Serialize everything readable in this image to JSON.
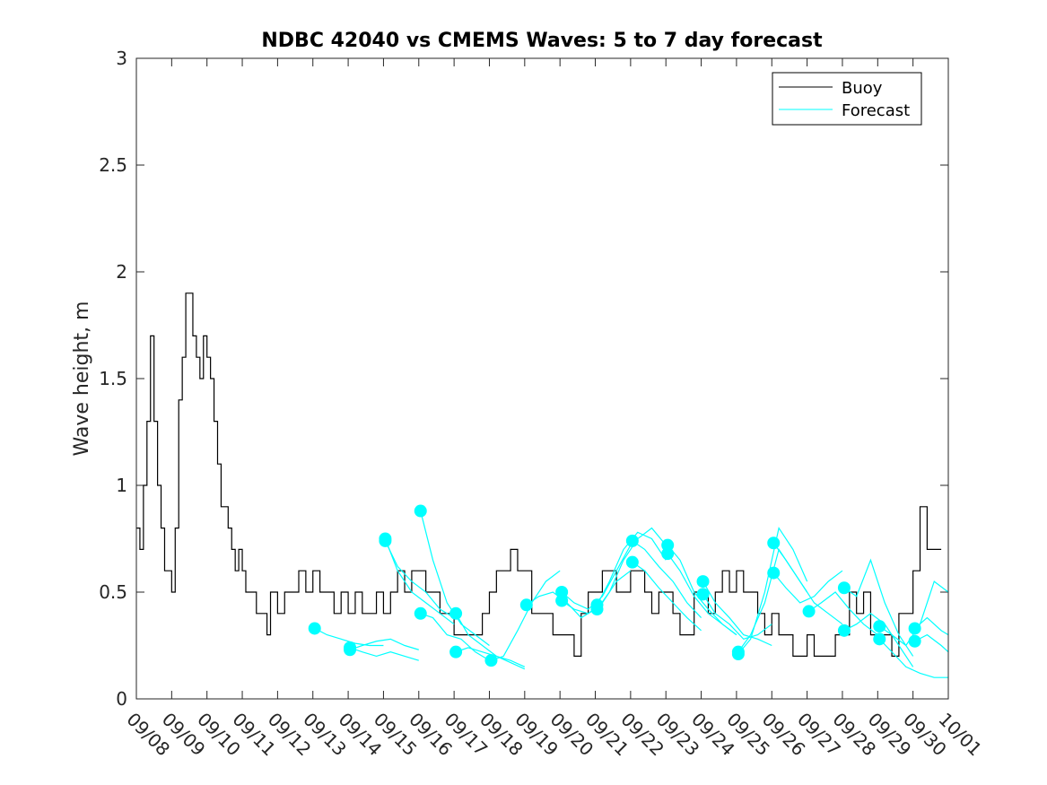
{
  "chart_data": {
    "type": "line",
    "title": "NDBC 42040 vs CMEMS Waves: 5 to 7 day forecast",
    "xlabel": "",
    "ylabel": "Wave height, m",
    "xlim": [
      0,
      23
    ],
    "ylim": [
      0,
      3
    ],
    "yticks": [
      "0",
      "0.5",
      "1",
      "1.5",
      "2",
      "2.5",
      "3"
    ],
    "ytick_values": [
      0,
      0.5,
      1,
      1.5,
      2,
      2.5,
      3
    ],
    "xticks": [
      "09/08",
      "09/09",
      "09/10",
      "09/11",
      "09/12",
      "09/13",
      "09/14",
      "09/15",
      "09/16",
      "09/17",
      "09/18",
      "09/19",
      "09/20",
      "09/21",
      "09/22",
      "09/23",
      "09/24",
      "09/25",
      "09/26",
      "09/27",
      "09/28",
      "09/29",
      "09/30",
      "10/01"
    ],
    "grid": false,
    "legend_position": "top-right",
    "legend": [
      "Buoy",
      "Forecast"
    ],
    "colors": {
      "buoy": "#000000",
      "forecast": "#00ffff"
    },
    "buoy": {
      "name": "Buoy",
      "x": [
        0,
        0.1,
        0.2,
        0.3,
        0.4,
        0.5,
        0.6,
        0.7,
        0.8,
        0.9,
        1.0,
        1.1,
        1.2,
        1.3,
        1.4,
        1.5,
        1.6,
        1.7,
        1.8,
        1.9,
        2.0,
        2.1,
        2.2,
        2.3,
        2.4,
        2.5,
        2.6,
        2.7,
        2.8,
        2.9,
        3.0,
        3.1,
        3.2,
        3.3,
        3.4,
        3.5,
        3.6,
        3.7,
        3.8,
        3.9,
        4.0,
        4.2,
        4.4,
        4.6,
        4.8,
        5.0,
        5.2,
        5.4,
        5.6,
        5.8,
        6.0,
        6.2,
        6.4,
        6.6,
        6.8,
        7.0,
        7.2,
        7.4,
        7.6,
        7.8,
        8.0,
        8.2,
        8.4,
        8.6,
        8.8,
        9.0,
        9.2,
        9.4,
        9.6,
        9.8,
        10.0,
        10.2,
        10.4,
        10.6,
        10.8,
        11.0,
        11.2,
        11.4,
        11.6,
        11.8,
        12.0,
        12.2,
        12.4,
        12.6,
        12.8,
        13.0,
        13.2,
        13.4,
        13.6,
        13.8,
        14.0,
        14.2,
        14.4,
        14.6,
        14.8,
        15.0,
        15.2,
        15.4,
        15.6,
        15.8,
        16.0,
        16.2,
        16.4,
        16.6,
        16.8,
        17.0,
        17.2,
        17.4,
        17.6,
        17.8,
        18.0,
        18.2,
        18.4,
        18.6,
        18.8,
        19.0,
        19.2,
        19.4,
        19.6,
        19.8,
        20.0,
        20.2,
        20.4,
        20.6,
        20.8,
        21.0,
        21.2,
        21.4,
        21.6,
        21.8,
        22.0,
        22.2,
        22.4,
        22.6,
        22.8
      ],
      "values": [
        0.8,
        0.7,
        1.0,
        1.3,
        1.7,
        1.3,
        1.0,
        0.8,
        0.6,
        0.6,
        0.5,
        0.8,
        1.4,
        1.6,
        1.9,
        1.9,
        1.7,
        1.6,
        1.5,
        1.7,
        1.6,
        1.5,
        1.3,
        1.1,
        0.9,
        0.9,
        0.8,
        0.7,
        0.6,
        0.7,
        0.6,
        0.5,
        0.5,
        0.5,
        0.4,
        0.4,
        0.4,
        0.3,
        0.5,
        0.5,
        0.4,
        0.5,
        0.5,
        0.6,
        0.5,
        0.6,
        0.5,
        0.5,
        0.4,
        0.5,
        0.4,
        0.5,
        0.4,
        0.4,
        0.5,
        0.4,
        0.5,
        0.6,
        0.5,
        0.6,
        0.6,
        0.5,
        0.5,
        0.4,
        0.4,
        0.3,
        0.3,
        0.3,
        0.3,
        0.4,
        0.5,
        0.6,
        0.6,
        0.7,
        0.6,
        0.6,
        0.4,
        0.4,
        0.4,
        0.3,
        0.3,
        0.3,
        0.2,
        0.4,
        0.5,
        0.5,
        0.6,
        0.6,
        0.5,
        0.5,
        0.6,
        0.6,
        0.5,
        0.4,
        0.5,
        0.5,
        0.4,
        0.3,
        0.3,
        0.5,
        0.5,
        0.4,
        0.5,
        0.6,
        0.5,
        0.6,
        0.5,
        0.5,
        0.4,
        0.3,
        0.4,
        0.3,
        0.3,
        0.2,
        0.2,
        0.3,
        0.2,
        0.2,
        0.2,
        0.3,
        0.3,
        0.5,
        0.4,
        0.5,
        0.3,
        0.3,
        0.3,
        0.2,
        0.4,
        0.4,
        0.6,
        0.9,
        0.7,
        0.7,
        0.7
      ]
    },
    "forecast": [
      {
        "name": "Forecast",
        "x": [
          5.05,
          5.4,
          5.8,
          6.2,
          6.6,
          7.0
        ],
        "values": [
          0.33,
          0.3,
          0.28,
          0.26,
          0.25,
          0.25
        ]
      },
      {
        "name": "Forecast",
        "x": [
          6.05,
          6.4,
          6.8,
          7.2,
          7.6,
          8.0
        ],
        "values": [
          0.24,
          0.22,
          0.2,
          0.22,
          0.2,
          0.18
        ]
      },
      {
        "name": "Forecast",
        "x": [
          6.05,
          6.4,
          6.8,
          7.2,
          7.6,
          8.0
        ],
        "values": [
          0.23,
          0.25,
          0.27,
          0.28,
          0.25,
          0.23
        ]
      },
      {
        "name": "Forecast",
        "x": [
          7.05,
          7.4,
          7.8,
          8.2,
          8.6,
          9.0
        ],
        "values": [
          0.74,
          0.62,
          0.55,
          0.5,
          0.42,
          0.38
        ]
      },
      {
        "name": "Forecast",
        "x": [
          7.05,
          7.4,
          7.8,
          8.2,
          8.6,
          9.0
        ],
        "values": [
          0.75,
          0.6,
          0.5,
          0.45,
          0.4,
          0.35
        ]
      },
      {
        "name": "Forecast",
        "x": [
          8.05,
          8.4,
          8.8,
          9.2,
          9.6,
          10.0
        ],
        "values": [
          0.88,
          0.65,
          0.45,
          0.35,
          0.3,
          0.25
        ]
      },
      {
        "name": "Forecast",
        "x": [
          8.05,
          8.4,
          8.8,
          9.2,
          9.6,
          10.0
        ],
        "values": [
          0.4,
          0.38,
          0.3,
          0.28,
          0.22,
          0.18
        ]
      },
      {
        "name": "Forecast",
        "x": [
          9.05,
          9.4,
          9.8,
          10.2,
          10.6,
          11.0
        ],
        "values": [
          0.4,
          0.3,
          0.25,
          0.2,
          0.18,
          0.15
        ]
      },
      {
        "name": "Forecast",
        "x": [
          9.05,
          9.4,
          9.8,
          10.2,
          10.6,
          11.0
        ],
        "values": [
          0.22,
          0.24,
          0.22,
          0.2,
          0.17,
          0.14
        ]
      },
      {
        "name": "Forecast",
        "x": [
          10.05,
          10.4,
          10.8,
          11.2,
          11.6,
          12.0
        ],
        "values": [
          0.18,
          0.2,
          0.32,
          0.45,
          0.55,
          0.6
        ]
      },
      {
        "name": "Forecast",
        "x": [
          11.05,
          11.4,
          11.8,
          12.2,
          12.6,
          13.0
        ],
        "values": [
          0.44,
          0.48,
          0.5,
          0.45,
          0.38,
          0.42
        ]
      },
      {
        "name": "Forecast",
        "x": [
          12.05,
          12.4,
          12.8,
          13.2,
          13.6,
          14.0
        ],
        "values": [
          0.46,
          0.42,
          0.4,
          0.45,
          0.55,
          0.6
        ]
      },
      {
        "name": "Forecast",
        "x": [
          12.05,
          12.4,
          12.8,
          13.2,
          13.6,
          14.0
        ],
        "values": [
          0.5,
          0.45,
          0.42,
          0.48,
          0.6,
          0.72
        ]
      },
      {
        "name": "Forecast",
        "x": [
          13.05,
          13.4,
          13.8,
          14.2,
          14.6,
          15.0
        ],
        "values": [
          0.42,
          0.5,
          0.65,
          0.75,
          0.8,
          0.72
        ]
      },
      {
        "name": "Forecast",
        "x": [
          13.05,
          13.4,
          13.8,
          14.2,
          14.6,
          15.0
        ],
        "values": [
          0.44,
          0.55,
          0.7,
          0.78,
          0.75,
          0.65
        ]
      },
      {
        "name": "Forecast",
        "x": [
          14.05,
          14.4,
          14.8,
          15.2,
          15.6,
          16.0
        ],
        "values": [
          0.74,
          0.7,
          0.62,
          0.55,
          0.45,
          0.38
        ]
      },
      {
        "name": "Forecast",
        "x": [
          14.05,
          14.4,
          14.8,
          15.2,
          15.6,
          16.0
        ],
        "values": [
          0.64,
          0.6,
          0.52,
          0.45,
          0.38,
          0.32
        ]
      },
      {
        "name": "Forecast",
        "x": [
          15.05,
          15.4,
          15.8,
          16.2,
          16.6,
          17.0
        ],
        "values": [
          0.72,
          0.65,
          0.5,
          0.42,
          0.35,
          0.3
        ]
      },
      {
        "name": "Forecast",
        "x": [
          15.05,
          15.4,
          15.8,
          16.2,
          16.6,
          17.0
        ],
        "values": [
          0.68,
          0.6,
          0.48,
          0.4,
          0.35,
          0.3
        ]
      },
      {
        "name": "Forecast",
        "x": [
          16.05,
          16.4,
          16.8,
          17.2,
          17.6,
          18.0
        ],
        "values": [
          0.55,
          0.45,
          0.38,
          0.3,
          0.28,
          0.25
        ]
      },
      {
        "name": "Forecast",
        "x": [
          16.05,
          16.4,
          16.8,
          17.2,
          17.6,
          18.0
        ],
        "values": [
          0.49,
          0.4,
          0.35,
          0.28,
          0.3,
          0.35
        ]
      },
      {
        "name": "Forecast",
        "x": [
          17.05,
          17.4,
          17.8,
          18.2,
          18.6,
          19.0
        ],
        "values": [
          0.22,
          0.3,
          0.45,
          0.7,
          0.6,
          0.5
        ]
      },
      {
        "name": "Forecast",
        "x": [
          17.05,
          17.4,
          17.8,
          18.2,
          18.6,
          19.0
        ],
        "values": [
          0.21,
          0.28,
          0.5,
          0.8,
          0.7,
          0.55
        ]
      },
      {
        "name": "Forecast",
        "x": [
          18.05,
          18.4,
          18.8,
          19.2,
          19.6,
          20.0
        ],
        "values": [
          0.73,
          0.65,
          0.55,
          0.45,
          0.4,
          0.35
        ]
      },
      {
        "name": "Forecast",
        "x": [
          18.05,
          18.4,
          18.8,
          19.2,
          19.6,
          20.0
        ],
        "values": [
          0.59,
          0.52,
          0.45,
          0.48,
          0.55,
          0.6
        ]
      },
      {
        "name": "Forecast",
        "x": [
          19.05,
          19.4,
          19.8,
          20.2,
          20.6,
          21.0
        ],
        "values": [
          0.41,
          0.45,
          0.5,
          0.42,
          0.35,
          0.3
        ]
      },
      {
        "name": "Forecast",
        "x": [
          20.05,
          20.4,
          20.8,
          21.2,
          21.6,
          22.0
        ],
        "values": [
          0.52,
          0.48,
          0.65,
          0.45,
          0.3,
          0.2
        ]
      },
      {
        "name": "Forecast",
        "x": [
          20.05,
          20.4,
          20.8,
          21.2,
          21.6,
          22.0
        ],
        "values": [
          0.32,
          0.35,
          0.4,
          0.35,
          0.25,
          0.15
        ]
      },
      {
        "name": "Forecast",
        "x": [
          21.05,
          21.4,
          21.8,
          22.2,
          22.6,
          23.0
        ],
        "values": [
          0.34,
          0.3,
          0.25,
          0.35,
          0.55,
          0.5
        ]
      },
      {
        "name": "Forecast",
        "x": [
          21.05,
          21.4,
          21.8,
          22.2,
          22.6,
          23.0
        ],
        "values": [
          0.28,
          0.22,
          0.15,
          0.12,
          0.1,
          0.1
        ]
      },
      {
        "name": "Forecast",
        "x": [
          22.05,
          22.4,
          22.8,
          23.0
        ],
        "values": [
          0.33,
          0.38,
          0.32,
          0.3
        ]
      },
      {
        "name": "Forecast",
        "x": [
          22.05,
          22.4,
          22.8,
          23.0
        ],
        "values": [
          0.27,
          0.3,
          0.25,
          0.22
        ]
      }
    ]
  }
}
